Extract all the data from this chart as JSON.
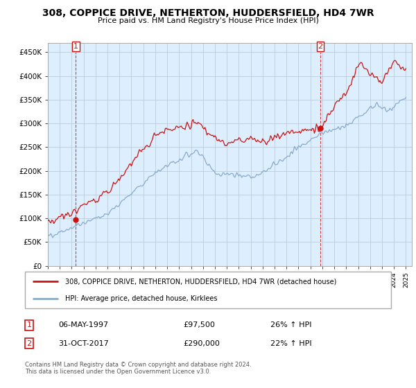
{
  "title": "308, COPPICE DRIVE, NETHERTON, HUDDERSFIELD, HD4 7WR",
  "subtitle": "Price paid vs. HM Land Registry's House Price Index (HPI)",
  "ylim": [
    0,
    470000
  ],
  "yticks": [
    0,
    50000,
    100000,
    150000,
    200000,
    250000,
    300000,
    350000,
    400000,
    450000
  ],
  "ytick_labels": [
    "£0",
    "£50K",
    "£100K",
    "£150K",
    "£200K",
    "£250K",
    "£300K",
    "£350K",
    "£400K",
    "£450K"
  ],
  "xlim": [
    1995,
    2025.5
  ],
  "background_color": "#ffffff",
  "chart_bg_color": "#ddeeff",
  "grid_color": "#bbccdd",
  "sale1_date_num": 1997.35,
  "sale1_price": 97500,
  "sale2_date_num": 2017.83,
  "sale2_price": 290000,
  "legend_line1": "308, COPPICE DRIVE, NETHERTON, HUDDERSFIELD, HD4 7WR (detached house)",
  "legend_line2": "HPI: Average price, detached house, Kirklees",
  "table_row1": [
    "1",
    "06-MAY-1997",
    "£97,500",
    "26% ↑ HPI"
  ],
  "table_row2": [
    "2",
    "31-OCT-2017",
    "£290,000",
    "22% ↑ HPI"
  ],
  "footnote": "Contains HM Land Registry data © Crown copyright and database right 2024.\nThis data is licensed under the Open Government Licence v3.0.",
  "house_line_color": "#cc1111",
  "hpi_line_color": "#88aacc",
  "sale_marker_color": "#cc1111",
  "vline_color": "#cc1111"
}
